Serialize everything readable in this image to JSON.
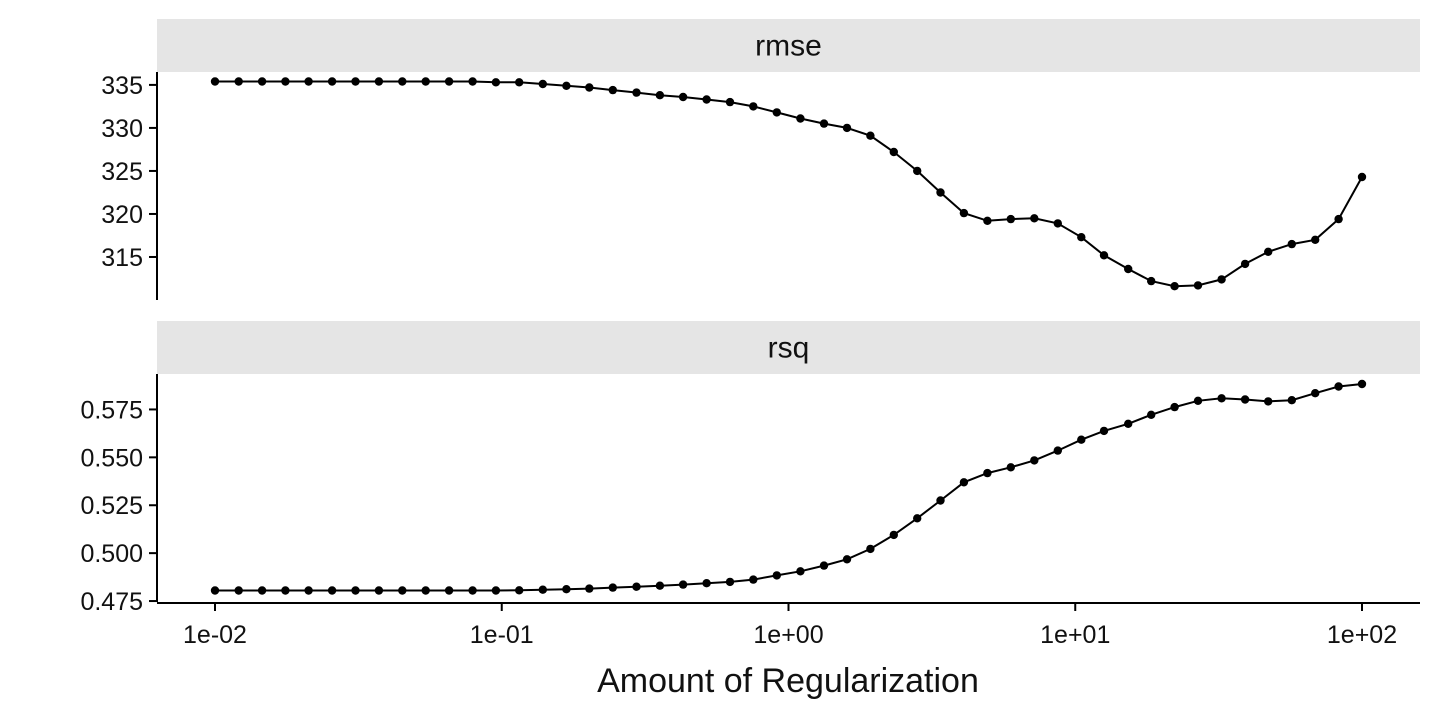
{
  "chart_data": {
    "type": "line",
    "xlabel": "Amount of Regularization",
    "x_scale": "log10",
    "x_ticks": [
      0.01,
      0.1,
      1,
      10,
      100
    ],
    "x_tick_labels": [
      "1e-02",
      "1e-01",
      "1e+00",
      "1e+01",
      "1e+02"
    ],
    "x": [
      0.01,
      0.0121,
      0.0146,
      0.0176,
      0.0212,
      0.0256,
      0.0309,
      0.0373,
      0.045,
      0.0543,
      0.0655,
      0.0791,
      0.0954,
      0.115,
      0.139,
      0.168,
      0.202,
      0.244,
      0.295,
      0.356,
      0.429,
      0.518,
      0.625,
      0.754,
      0.91,
      1.1,
      1.33,
      1.6,
      1.93,
      2.33,
      2.81,
      3.39,
      4.09,
      4.94,
      5.96,
      7.2,
      8.69,
      10.5,
      12.6,
      15.3,
      18.4,
      22.2,
      26.8,
      32.4,
      39.1,
      47.1,
      56.9,
      68.7,
      82.9,
      100
    ],
    "panels": [
      {
        "strip": "rmse",
        "ylim": [
          310,
          336.5
        ],
        "y_ticks": [
          315,
          320,
          325,
          330,
          335
        ],
        "y_tick_labels": [
          "315",
          "320",
          "325",
          "330",
          "335"
        ],
        "y": [
          335.4,
          335.4,
          335.4,
          335.4,
          335.4,
          335.4,
          335.4,
          335.4,
          335.4,
          335.4,
          335.4,
          335.4,
          335.3,
          335.3,
          335.1,
          334.9,
          334.7,
          334.4,
          334.1,
          333.8,
          333.6,
          333.3,
          333.0,
          332.5,
          331.8,
          331.1,
          330.5,
          330.0,
          329.1,
          327.2,
          325.0,
          322.5,
          320.1,
          319.2,
          319.4,
          319.5,
          318.9,
          317.3,
          315.2,
          313.6,
          312.2,
          311.6,
          311.7,
          312.4,
          314.2,
          315.6,
          316.5,
          317.0,
          319.4,
          324.3
        ]
      },
      {
        "strip": "rsq",
        "ylim": [
          0.4745,
          0.5935
        ],
        "y_ticks": [
          0.475,
          0.5,
          0.525,
          0.55,
          0.575
        ],
        "y_tick_labels": [
          "0.475",
          "0.500",
          "0.525",
          "0.550",
          "0.575"
        ],
        "y": [
          0.4805,
          0.4805,
          0.4805,
          0.4805,
          0.4805,
          0.4805,
          0.4805,
          0.4805,
          0.4805,
          0.4805,
          0.4805,
          0.4805,
          0.4805,
          0.4806,
          0.4809,
          0.4812,
          0.4815,
          0.482,
          0.4825,
          0.483,
          0.4836,
          0.4843,
          0.485,
          0.4862,
          0.4884,
          0.4905,
          0.4935,
          0.4968,
          0.5022,
          0.5095,
          0.5182,
          0.5275,
          0.537,
          0.5418,
          0.5448,
          0.5484,
          0.5535,
          0.5592,
          0.5638,
          0.5675,
          0.5722,
          0.5762,
          0.5795,
          0.5808,
          0.5802,
          0.5792,
          0.5798,
          0.5835,
          0.587,
          0.5883
        ]
      }
    ]
  }
}
